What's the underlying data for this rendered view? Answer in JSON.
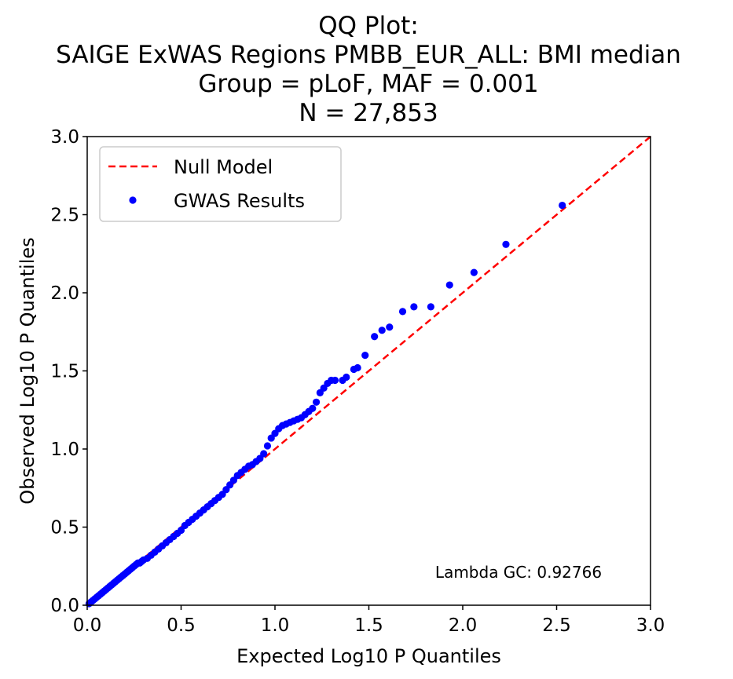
{
  "chart_data": {
    "type": "scatter",
    "title_lines": [
      "QQ Plot:",
      "SAIGE ExWAS Regions PMBB_EUR_ALL: BMI median",
      "Group = pLoF, MAF = 0.001",
      "N = 27,853"
    ],
    "xlabel": "Expected Log10 P Quantiles",
    "ylabel": "Observed Log10 P Quantiles",
    "xlim": [
      0,
      3
    ],
    "ylim": [
      0,
      3
    ],
    "xticks": [
      0.0,
      0.5,
      1.0,
      1.5,
      2.0,
      2.5,
      3.0
    ],
    "yticks": [
      0.0,
      0.5,
      1.0,
      1.5,
      2.0,
      2.5,
      3.0
    ],
    "xtick_labels": [
      "0.0",
      "0.5",
      "1.0",
      "1.5",
      "2.0",
      "2.5",
      "3.0"
    ],
    "ytick_labels": [
      "0.0",
      "0.5",
      "1.0",
      "1.5",
      "2.0",
      "2.5",
      "3.0"
    ],
    "legend": {
      "position": "upper-left",
      "entries": [
        {
          "label": "Null Model",
          "style": "dashed-line",
          "color": "#ff0000"
        },
        {
          "label": "GWAS Results",
          "style": "marker",
          "color": "#0000ff"
        }
      ]
    },
    "annotation": "Lambda GC: 0.92766",
    "null_line": {
      "x": [
        0,
        3
      ],
      "y": [
        0,
        3
      ],
      "color": "#ff0000"
    },
    "series": [
      {
        "name": "GWAS Results",
        "color": "#0000ff",
        "points": [
          [
            0.01,
            0.01
          ],
          [
            0.02,
            0.02
          ],
          [
            0.03,
            0.03
          ],
          [
            0.04,
            0.04
          ],
          [
            0.05,
            0.05
          ],
          [
            0.06,
            0.06
          ],
          [
            0.07,
            0.07
          ],
          [
            0.08,
            0.08
          ],
          [
            0.09,
            0.09
          ],
          [
            0.1,
            0.1
          ],
          [
            0.11,
            0.11
          ],
          [
            0.12,
            0.12
          ],
          [
            0.13,
            0.13
          ],
          [
            0.14,
            0.14
          ],
          [
            0.15,
            0.15
          ],
          [
            0.16,
            0.16
          ],
          [
            0.17,
            0.17
          ],
          [
            0.18,
            0.18
          ],
          [
            0.19,
            0.19
          ],
          [
            0.2,
            0.2
          ],
          [
            0.21,
            0.21
          ],
          [
            0.22,
            0.22
          ],
          [
            0.23,
            0.23
          ],
          [
            0.24,
            0.24
          ],
          [
            0.25,
            0.25
          ],
          [
            0.26,
            0.26
          ],
          [
            0.27,
            0.27
          ],
          [
            0.28,
            0.27
          ],
          [
            0.29,
            0.28
          ],
          [
            0.3,
            0.29
          ],
          [
            0.32,
            0.3
          ],
          [
            0.34,
            0.32
          ],
          [
            0.36,
            0.34
          ],
          [
            0.38,
            0.36
          ],
          [
            0.4,
            0.38
          ],
          [
            0.42,
            0.4
          ],
          [
            0.44,
            0.42
          ],
          [
            0.46,
            0.44
          ],
          [
            0.48,
            0.46
          ],
          [
            0.5,
            0.48
          ],
          [
            0.52,
            0.51
          ],
          [
            0.54,
            0.53
          ],
          [
            0.56,
            0.55
          ],
          [
            0.58,
            0.57
          ],
          [
            0.6,
            0.59
          ],
          [
            0.62,
            0.61
          ],
          [
            0.64,
            0.63
          ],
          [
            0.66,
            0.65
          ],
          [
            0.68,
            0.67
          ],
          [
            0.7,
            0.69
          ],
          [
            0.72,
            0.71
          ],
          [
            0.74,
            0.74
          ],
          [
            0.76,
            0.77
          ],
          [
            0.78,
            0.8
          ],
          [
            0.8,
            0.83
          ],
          [
            0.82,
            0.85
          ],
          [
            0.84,
            0.87
          ],
          [
            0.86,
            0.89
          ],
          [
            0.88,
            0.9
          ],
          [
            0.9,
            0.92
          ],
          [
            0.92,
            0.94
          ],
          [
            0.94,
            0.97
          ],
          [
            0.96,
            1.02
          ],
          [
            0.98,
            1.07
          ],
          [
            1.0,
            1.1
          ],
          [
            1.02,
            1.13
          ],
          [
            1.04,
            1.15
          ],
          [
            1.06,
            1.16
          ],
          [
            1.08,
            1.17
          ],
          [
            1.1,
            1.18
          ],
          [
            1.12,
            1.19
          ],
          [
            1.14,
            1.2
          ],
          [
            1.16,
            1.22
          ],
          [
            1.18,
            1.24
          ],
          [
            1.2,
            1.26
          ],
          [
            1.22,
            1.3
          ],
          [
            1.24,
            1.36
          ],
          [
            1.26,
            1.39
          ],
          [
            1.28,
            1.42
          ],
          [
            1.3,
            1.44
          ],
          [
            1.32,
            1.44
          ],
          [
            1.36,
            1.44
          ],
          [
            1.38,
            1.46
          ],
          [
            1.42,
            1.51
          ],
          [
            1.44,
            1.52
          ],
          [
            1.48,
            1.6
          ],
          [
            1.53,
            1.72
          ],
          [
            1.57,
            1.76
          ],
          [
            1.61,
            1.78
          ],
          [
            1.68,
            1.88
          ],
          [
            1.74,
            1.91
          ],
          [
            1.83,
            1.91
          ],
          [
            1.93,
            2.05
          ],
          [
            2.06,
            2.13
          ],
          [
            2.23,
            2.31
          ],
          [
            2.53,
            2.56
          ]
        ]
      }
    ]
  }
}
